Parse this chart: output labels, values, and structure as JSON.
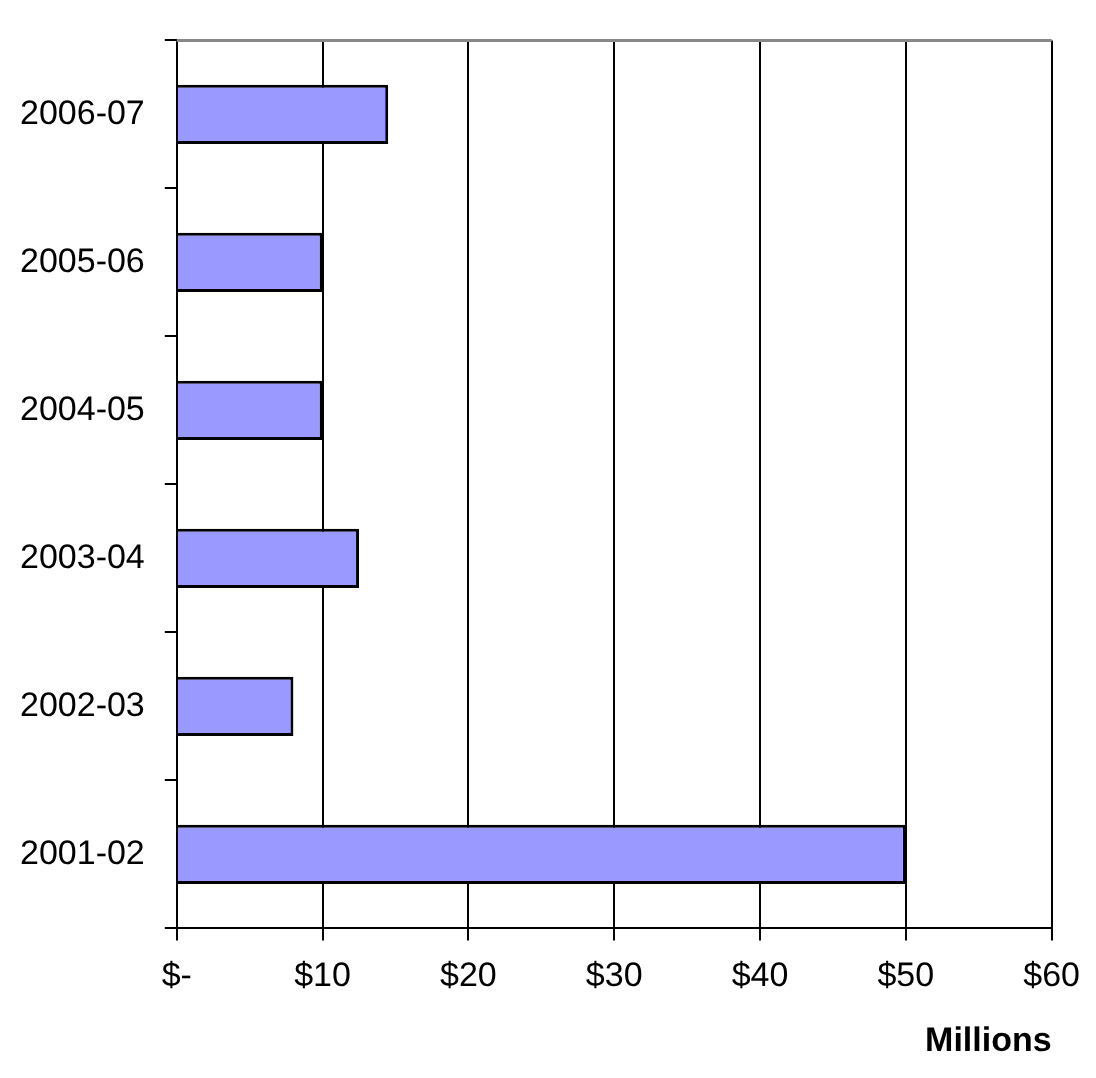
{
  "chart_data": {
    "type": "bar",
    "orientation": "horizontal",
    "xlabel": "Millions",
    "categories": [
      "2006-07",
      "2005-06",
      "2004-05",
      "2003-04",
      "2002-03",
      "2001-02"
    ],
    "values": [
      14.5,
      10,
      10,
      12.5,
      8,
      50
    ],
    "color": "#9999ff",
    "xlim": [
      0,
      60
    ],
    "xticks": [
      {
        "value": 0,
        "label": "$-"
      },
      {
        "value": 10,
        "label": "$10"
      },
      {
        "value": 20,
        "label": "$20"
      },
      {
        "value": 30,
        "label": "$30"
      },
      {
        "value": 40,
        "label": "$40"
      },
      {
        "value": 50,
        "label": "$50"
      },
      {
        "value": 60,
        "label": "$60"
      }
    ],
    "grid": "x",
    "legend": false
  }
}
